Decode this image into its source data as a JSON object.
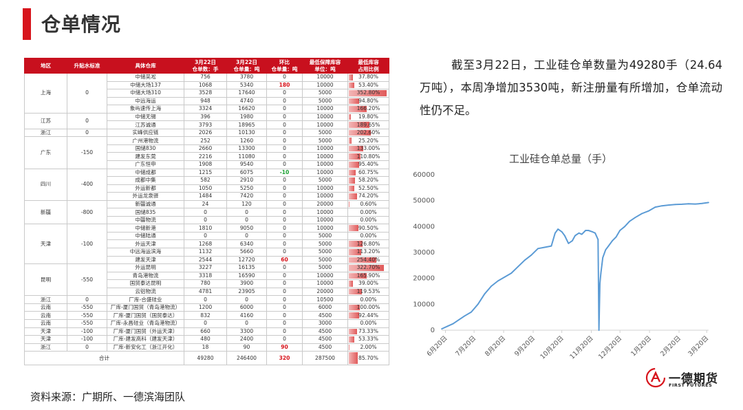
{
  "page": {
    "title": "仓单情况",
    "source": "资料来源：广期所、一德滨海团队"
  },
  "summary": "截至3月22日，工业硅仓单数量为49280手（24.64万吨），本周净增加3530吨，新注册量有所增加，仓单流动性仍不足。",
  "table": {
    "headers": [
      "地区",
      "升贴水标准",
      "具体仓库",
      "3月22日\n仓单数：手",
      "3月22日\n仓单量：吨",
      "环比\n仓单量：吨",
      "最低保障库容\n单位：吨",
      "最低库容\n占用比例"
    ],
    "groups": [
      {
        "region": "上海",
        "premium": "0",
        "rows": [
          {
            "wh": "中储吴凇",
            "lots": "756",
            "tons": "3780",
            "chg": "0",
            "cap": "10000",
            "ratio": "37.80%"
          },
          {
            "wh": "中储大场137",
            "lots": "1068",
            "tons": "5340",
            "chg": "180",
            "cap": "10000",
            "ratio": "53.40%"
          },
          {
            "wh": "中储大场310",
            "lots": "3528",
            "tons": "17640",
            "chg": "0",
            "cap": "5000",
            "ratio": "352.80%"
          },
          {
            "wh": "中远海运",
            "lots": "948",
            "tons": "4740",
            "chg": "0",
            "cap": "5000",
            "ratio": "94.80%"
          },
          {
            "wh": "象屿速传上海",
            "lots": "3324",
            "tons": "16620",
            "chg": "0",
            "cap": "10000",
            "ratio": "166.20%"
          }
        ]
      },
      {
        "region": "江苏",
        "premium": "0",
        "rows": [
          {
            "wh": "中储无锡",
            "lots": "396",
            "tons": "1980",
            "chg": "0",
            "cap": "10000",
            "ratio": "19.80%"
          },
          {
            "wh": "江苏诚通",
            "lots": "3793",
            "tons": "18965",
            "chg": "0",
            "cap": "10000",
            "ratio": "189.65%"
          }
        ]
      },
      {
        "region": "浙江",
        "premium": "0",
        "rows": [
          {
            "wh": "实峰供应链",
            "lots": "2026",
            "tons": "10130",
            "chg": "0",
            "cap": "5000",
            "ratio": "202.60%"
          }
        ]
      },
      {
        "region": "广东",
        "premium": "-150",
        "rows": [
          {
            "wh": "广州港物流",
            "lots": "252",
            "tons": "1260",
            "chg": "0",
            "cap": "5000",
            "ratio": "25.20%"
          },
          {
            "wh": "国储830",
            "lots": "2660",
            "tons": "13300",
            "chg": "0",
            "cap": "10000",
            "ratio": "133.00%"
          },
          {
            "wh": "建发东莞",
            "lots": "2216",
            "tons": "11080",
            "chg": "0",
            "cap": "10000",
            "ratio": "110.80%"
          },
          {
            "wh": "广东恒申",
            "lots": "1908",
            "tons": "9540",
            "chg": "0",
            "cap": "10000",
            "ratio": "95.40%"
          }
        ]
      },
      {
        "region": "四川",
        "premium": "-400",
        "rows": [
          {
            "wh": "中储成都",
            "lots": "1215",
            "tons": "6075",
            "chg": "-10",
            "cap": "10000",
            "ratio": "60.75%"
          },
          {
            "wh": "成都中集",
            "lots": "582",
            "tons": "2910",
            "chg": "0",
            "cap": "5000",
            "ratio": "58.20%"
          },
          {
            "wh": "外运新都",
            "lots": "1050",
            "tons": "5250",
            "chg": "0",
            "cap": "10000",
            "ratio": "52.50%"
          },
          {
            "wh": "外运龙泉驿",
            "lots": "1484",
            "tons": "7420",
            "chg": "0",
            "cap": "10000",
            "ratio": "74.20%"
          }
        ]
      },
      {
        "region": "新疆",
        "premium": "-800",
        "rows": [
          {
            "wh": "新疆诚通",
            "lots": "24",
            "tons": "120",
            "chg": "0",
            "cap": "20000",
            "ratio": "0.60%"
          },
          {
            "wh": "国储835",
            "lots": "0",
            "tons": "0",
            "chg": "0",
            "cap": "10000",
            "ratio": "0.00%"
          },
          {
            "wh": "中疆物流",
            "lots": "0",
            "tons": "0",
            "chg": "0",
            "cap": "10000",
            "ratio": "0.00%"
          }
        ]
      },
      {
        "region": "天津",
        "premium": "-100",
        "rows": [
          {
            "wh": "中储新港",
            "lots": "1810",
            "tons": "9050",
            "chg": "0",
            "cap": "10000",
            "ratio": "90.50%"
          },
          {
            "wh": "中储陆通",
            "lots": "0",
            "tons": "0",
            "chg": "0",
            "cap": "5000",
            "ratio": "0.00%"
          },
          {
            "wh": "外运天津",
            "lots": "1268",
            "tons": "6340",
            "chg": "0",
            "cap": "5000",
            "ratio": "126.80%"
          },
          {
            "wh": "中远海运滨海",
            "lots": "1132",
            "tons": "5660",
            "chg": "0",
            "cap": "5000",
            "ratio": "113.20%"
          },
          {
            "wh": "建发天津",
            "lots": "2544",
            "tons": "12720",
            "chg": "60",
            "cap": "5000",
            "ratio": "254.40%"
          }
        ]
      },
      {
        "region": "昆明",
        "premium": "-550",
        "rows": [
          {
            "wh": "外运昆明",
            "lots": "3227",
            "tons": "16135",
            "chg": "0",
            "cap": "5000",
            "ratio": "322.70%"
          },
          {
            "wh": "青岛港物流",
            "lots": "3318",
            "tons": "16590",
            "chg": "0",
            "cap": "10000",
            "ratio": "165.90%"
          },
          {
            "wh": "国贸泰达昆明",
            "lots": "780",
            "tons": "3900",
            "chg": "0",
            "cap": "10000",
            "ratio": "39.00%"
          },
          {
            "wh": "云铝物流",
            "lots": "4781",
            "tons": "23905",
            "chg": "0",
            "cap": "20000",
            "ratio": "119.53%"
          }
        ]
      },
      {
        "region": "浙江",
        "premium": "0",
        "rows": [
          {
            "wh": "厂库-合盛硅业",
            "lots": "0",
            "tons": "0",
            "chg": "0",
            "cap": "10500",
            "ratio": "0.00%"
          }
        ]
      },
      {
        "region": "云南",
        "premium": "-550",
        "rows": [
          {
            "wh": "厂库-厦门国贸（青岛港物流）",
            "lots": "1200",
            "tons": "6000",
            "chg": "0",
            "cap": "6000",
            "ratio": "100.00%"
          }
        ]
      },
      {
        "region": "云南",
        "premium": "-550",
        "rows": [
          {
            "wh": "厂库-厦门国贸（国贸泰达）",
            "lots": "832",
            "tons": "4160",
            "chg": "0",
            "cap": "4500",
            "ratio": "92.44%"
          }
        ]
      },
      {
        "region": "云南",
        "premium": "-550",
        "rows": [
          {
            "wh": "厂库-永昌硅业（青岛港物流）",
            "lots": "0",
            "tons": "0",
            "chg": "0",
            "cap": "3000",
            "ratio": "0.00%"
          }
        ]
      },
      {
        "region": "天津",
        "premium": "-100",
        "rows": [
          {
            "wh": "厂库-厦门国贸（外运天津）",
            "lots": "660",
            "tons": "3300",
            "chg": "0",
            "cap": "4500",
            "ratio": "73.33%"
          }
        ]
      },
      {
        "region": "天津",
        "premium": "-100",
        "rows": [
          {
            "wh": "厂库-建发高科（建发天津）",
            "lots": "480",
            "tons": "2400",
            "chg": "0",
            "cap": "4500",
            "ratio": "53.33%"
          }
        ]
      },
      {
        "region": "浙江",
        "premium": "0",
        "rows": [
          {
            "wh": "厂库-新安化工（浙江开化）",
            "lots": "18",
            "tons": "90",
            "chg": "90",
            "cap": "4500",
            "ratio": "2.00%"
          }
        ]
      }
    ],
    "total": {
      "label": "合计",
      "lots": "49280",
      "tons": "246400",
      "chg": "320",
      "cap": "287500",
      "ratio": "85.70%"
    }
  },
  "chart_data": {
    "type": "line",
    "title": "工业硅仓单总量（手）",
    "xlabel": "",
    "ylabel": "",
    "ylim": [
      0,
      60000
    ],
    "yticks": [
      "0",
      "10000",
      "20000",
      "30000",
      "40000",
      "50000",
      "60000"
    ],
    "x_tick_labels": [
      "6月20日",
      "7月20日",
      "8月20日",
      "9月20日",
      "10月20日",
      "11月20日",
      "12月20日",
      "1月20日",
      "2月20日",
      "3月20日"
    ],
    "grid": false,
    "legend": "none",
    "color": "#5b9bd5",
    "series": [
      {
        "x": [
          "2023-06-16",
          "2023-06-22",
          "2023-06-28",
          "2023-07-04",
          "2023-07-10",
          "2023-07-17",
          "2023-07-24",
          "2023-07-31",
          "2023-08-07",
          "2023-08-14",
          "2023-08-21",
          "2023-08-28",
          "2023-09-04",
          "2023-09-11",
          "2023-09-18",
          "2023-09-25",
          "2023-10-02",
          "2023-10-09",
          "2023-10-13",
          "2023-10-16",
          "2023-10-20",
          "2023-10-23",
          "2023-10-27",
          "2023-10-31",
          "2023-11-03",
          "2023-11-07",
          "2023-11-10",
          "2023-11-14",
          "2023-11-17",
          "2023-11-21",
          "2023-11-24",
          "2023-11-27",
          "2023-11-28",
          "2023-11-29",
          "2023-11-30",
          "2023-12-02",
          "2023-12-05",
          "2023-12-08",
          "2023-12-12",
          "2023-12-16",
          "2023-12-20",
          "2023-12-25",
          "2023-12-30",
          "2024-01-05",
          "2024-01-12",
          "2024-01-19",
          "2024-01-26",
          "2024-02-02",
          "2024-02-09",
          "2024-02-16",
          "2024-02-23",
          "2024-03-01",
          "2024-03-08",
          "2024-03-15",
          "2024-03-22"
        ],
        "y": [
          500,
          1500,
          2500,
          4000,
          5500,
          7000,
          10000,
          14000,
          17000,
          19000,
          20500,
          22000,
          24500,
          27000,
          29000,
          31500,
          32000,
          32500,
          37500,
          39000,
          38000,
          36500,
          33500,
          34500,
          36500,
          37500,
          37000,
          38500,
          38500,
          38000,
          37500,
          35000,
          0,
          18000,
          22000,
          28000,
          31000,
          32500,
          34500,
          36000,
          38500,
          40000,
          42000,
          43500,
          45000,
          46000,
          47500,
          48000,
          48300,
          48500,
          48600,
          48800,
          48700,
          48900,
          49280
        ]
      }
    ]
  }
}
